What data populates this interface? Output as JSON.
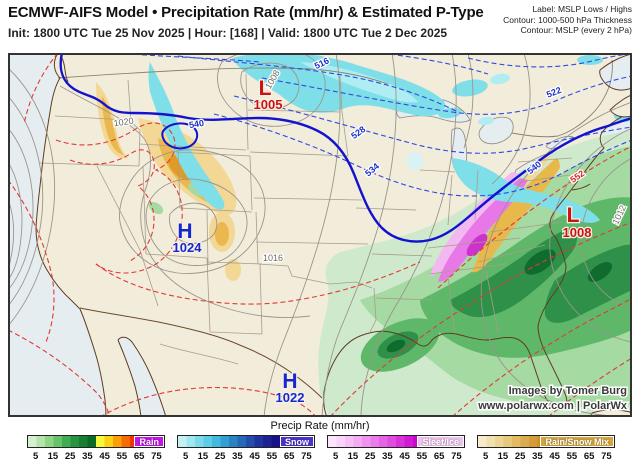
{
  "header": {
    "title": "ECMWF-AIFS Model • Precipitation Rate (mm/hr) & Estimated P-Type",
    "subtitle": "Init: 1800 UTC Tue 25 Nov 2025 | Hour: [168] | Valid: 1800 UTC Tue 2 Dec 2025",
    "right_lines": [
      "Label: MSLP Lows / Highs",
      "Contour: 1000-500 hPa Thickness",
      "Contour: MSLP (every 2 hPa)"
    ]
  },
  "map": {
    "pressure_centers": [
      {
        "letter": "L",
        "value": "1005",
        "kind": "low"
      },
      {
        "letter": "H",
        "value": "1024",
        "kind": "high"
      },
      {
        "letter": "H",
        "value": "1022",
        "kind": "high"
      },
      {
        "letter": "L",
        "value": "1008",
        "kind": "low"
      }
    ],
    "contour_labels": [
      {
        "text": "540"
      },
      {
        "text": "540"
      },
      {
        "text": "534"
      },
      {
        "text": "528"
      },
      {
        "text": "522"
      },
      {
        "text": "516"
      },
      {
        "text": "552"
      },
      {
        "text": "1020"
      },
      {
        "text": "1016"
      },
      {
        "text": "1008"
      },
      {
        "text": "1012"
      }
    ],
    "watermark": {
      "credit": "Images by Tomer Burg",
      "site": "www.polarwx.com | PolarWx"
    }
  },
  "colors": {
    "low_label": "#cc1111",
    "high_label": "#1727cf",
    "thickness_540_line": "#1212cf",
    "thickness_below_540": "#2f4ae0",
    "thickness_above_540": "#e03a34",
    "mslp_contour": "#9b958a",
    "land": "#f2ecdb",
    "ocean": "#e6edf1"
  },
  "legend": {
    "title": "Precip Rate (mm/hr)",
    "max_value": 80,
    "ticks": [
      5,
      15,
      25,
      35,
      45,
      55,
      65,
      75
    ],
    "bars": [
      {
        "label": "Rain",
        "badge_bg": "#c414e8",
        "colors": [
          "#d5efcf",
          "#b5e3ab",
          "#8fd488",
          "#67c36c",
          "#41ad52",
          "#27953f",
          "#167f31",
          "#0a6a26",
          "#f8f83a",
          "#fcd116",
          "#fca00a",
          "#f76b05",
          "#ee3601",
          "#d81000",
          "#b80400",
          "#980000"
        ]
      },
      {
        "label": "Snow",
        "badge_bg": "#4d33cc",
        "colors": [
          "#c4f0f4",
          "#a0e6ef",
          "#7cdbeb",
          "#5ccde6",
          "#43b9dd",
          "#339fd1",
          "#2b83c4",
          "#2767b8",
          "#234cac",
          "#1f33a0",
          "#1b2294",
          "#181188",
          "#2a0f8e",
          "#3c1296",
          "#4e169e",
          "#6019a6"
        ]
      },
      {
        "label": "Sleet/Ice",
        "badge_bg": "#eec2ee",
        "colors": [
          "#fce4fc",
          "#f9d3f9",
          "#f6c0f6",
          "#f2aaf2",
          "#ee93ee",
          "#ea7cea",
          "#e563e5",
          "#e04be0",
          "#da32da",
          "#d31ad3",
          "#cb06cb",
          "#bc00c6",
          "#a900bc",
          "#9600b2",
          "#8300a8",
          "#70009e"
        ]
      },
      {
        "label": "Rain/Snow Mix",
        "badge_bg": "#d3a53c",
        "colors": [
          "#f6ecca",
          "#f1e1ae",
          "#edd593",
          "#e8c87a",
          "#e3ba62",
          "#dcab4d",
          "#d59c3a",
          "#cd8d2a",
          "#c37f1d",
          "#b87213",
          "#ab660c",
          "#9e5b07",
          "#905104",
          "#824802",
          "#744001",
          "#673901"
        ]
      }
    ]
  }
}
